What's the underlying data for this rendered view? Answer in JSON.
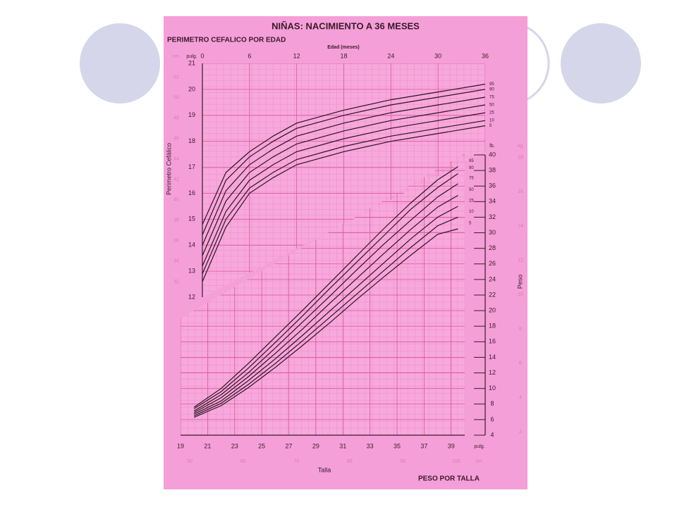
{
  "title": "NIÑAS: NACIMIENTO A 36 MESES",
  "chart_data": [
    {
      "type": "line",
      "title": "PERIMETRO CEFALICO POR EDAD",
      "xlabel": "Edad (meses)",
      "ylabel": "Perimetro Cefálico",
      "y_unit": "pulg.",
      "y2_unit": "cm.",
      "x": [
        0,
        3,
        6,
        9,
        12,
        18,
        24,
        30,
        36
      ],
      "xlim": [
        0,
        36
      ],
      "xticks": [
        0,
        6,
        12,
        18,
        24,
        30,
        36
      ],
      "ylim": [
        12,
        21
      ],
      "yticks": [
        12,
        13,
        14,
        15,
        16,
        17,
        18,
        19,
        20,
        21
      ],
      "y2lim": [
        30.48,
        53.34
      ],
      "y2ticks": [
        32,
        34,
        36,
        38,
        40,
        42,
        44,
        46,
        48,
        50,
        52
      ],
      "grid": true,
      "color": "#2a1420",
      "series": [
        {
          "name": "95",
          "values": [
            14.8,
            16.8,
            17.6,
            18.2,
            18.7,
            19.2,
            19.6,
            19.9,
            20.2
          ]
        },
        {
          "name": "90",
          "values": [
            14.4,
            16.5,
            17.4,
            18.0,
            18.5,
            19.0,
            19.4,
            19.7,
            20.0
          ]
        },
        {
          "name": "75",
          "values": [
            14.0,
            16.1,
            17.1,
            17.7,
            18.2,
            18.7,
            19.1,
            19.4,
            19.7
          ]
        },
        {
          "name": "50",
          "values": [
            13.6,
            15.7,
            16.8,
            17.4,
            17.9,
            18.4,
            18.8,
            19.1,
            19.4
          ]
        },
        {
          "name": "25",
          "values": [
            13.2,
            15.3,
            16.5,
            17.1,
            17.6,
            18.1,
            18.5,
            18.8,
            19.1
          ]
        },
        {
          "name": "10",
          "values": [
            12.9,
            15.0,
            16.2,
            16.8,
            17.3,
            17.8,
            18.2,
            18.5,
            18.8
          ]
        },
        {
          "name": "5",
          "values": [
            12.6,
            14.7,
            16.0,
            16.6,
            17.1,
            17.6,
            18.0,
            18.3,
            18.6
          ]
        }
      ]
    },
    {
      "type": "line",
      "title": "PESO POR TALLA",
      "xlabel": "Talla",
      "ylabel": "Peso",
      "x_unit": "pulg.",
      "x2_unit": "cm.",
      "y_unit": "lb.",
      "y2_unit": "kg",
      "x": [
        20,
        22,
        24,
        26,
        28,
        30,
        32,
        34,
        36,
        38,
        39.5
      ],
      "xlim": [
        19,
        40
      ],
      "xticks": [
        19,
        21,
        23,
        25,
        27,
        29,
        31,
        33,
        35,
        37,
        39
      ],
      "x2lim": [
        48.26,
        101.6
      ],
      "x2ticks": [
        50,
        60,
        70,
        80,
        90,
        100
      ],
      "ylim": [
        4,
        40
      ],
      "yticks": [
        4,
        6,
        8,
        10,
        12,
        14,
        16,
        18,
        20,
        22,
        24,
        26,
        28,
        30,
        32,
        34,
        36,
        38,
        40
      ],
      "y2lim": [
        1.81,
        18.14
      ],
      "y2ticks": [
        2,
        4,
        6,
        8,
        10,
        12,
        14,
        16,
        18
      ],
      "grid": true,
      "color": "#2a1420",
      "series": [
        {
          "name": "95",
          "values": [
            7.6,
            10.0,
            13.2,
            16.6,
            20.0,
            23.5,
            27.0,
            30.5,
            33.8,
            36.8,
            38.5
          ]
        },
        {
          "name": "90",
          "values": [
            7.4,
            9.6,
            12.6,
            15.9,
            19.3,
            22.8,
            26.2,
            29.6,
            33.0,
            35.8,
            37.6
          ]
        },
        {
          "name": "75",
          "values": [
            7.1,
            9.2,
            12.0,
            15.2,
            18.5,
            21.8,
            25.2,
            28.5,
            31.6,
            34.6,
            36.3
          ]
        },
        {
          "name": "50",
          "values": [
            6.9,
            8.8,
            11.5,
            14.5,
            17.6,
            20.9,
            24.1,
            27.3,
            30.4,
            33.3,
            34.8
          ]
        },
        {
          "name": "25",
          "values": [
            6.7,
            8.4,
            11.0,
            13.8,
            16.8,
            19.9,
            23.0,
            26.1,
            29.2,
            32.0,
            33.4
          ]
        },
        {
          "name": "10",
          "values": [
            6.5,
            8.1,
            10.5,
            13.2,
            16.1,
            19.1,
            22.1,
            25.1,
            28.1,
            30.9,
            32.0
          ]
        },
        {
          "name": "5",
          "values": [
            6.3,
            7.8,
            10.1,
            12.7,
            15.5,
            18.4,
            21.4,
            24.3,
            27.1,
            29.8,
            30.5
          ]
        }
      ]
    }
  ]
}
